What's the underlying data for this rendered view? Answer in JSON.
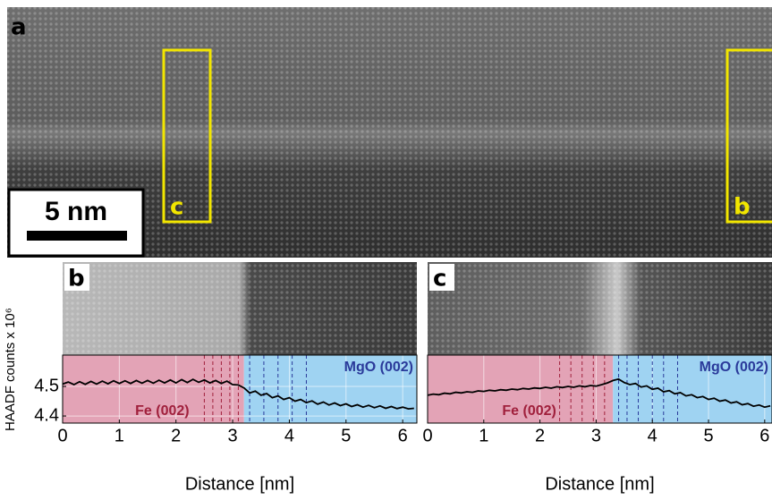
{
  "figure": {
    "panel_labels": [
      "a",
      "b",
      "c"
    ],
    "scale_bar": "5 nm",
    "roi_labels": [
      "c",
      "b"
    ]
  },
  "chart_data": [
    {
      "type": "line",
      "xlabel": "Distance [nm]",
      "ylabel": "HAADF counts x 10⁶",
      "xlim": [
        0,
        6.25
      ],
      "ylim": [
        4.376,
        4.606
      ],
      "xticks": [
        0,
        1,
        2,
        3,
        4,
        5,
        6
      ],
      "yticks": [
        4.4,
        4.5
      ],
      "grid": true,
      "color": "#000000",
      "regions": [
        {
          "label": "Fe (002)",
          "range": [
            0,
            3.2
          ],
          "color": "#e3a3b6",
          "line_color": "#a0203c",
          "lines": [
            2.5,
            2.65,
            2.8,
            2.95,
            3.1
          ]
        },
        {
          "label": "MgO (002)",
          "range": [
            3.2,
            6.25
          ],
          "color": "#9fd3f2",
          "line_color": "#2a3a9a",
          "lines": [
            3.3,
            3.55,
            3.8,
            4.05,
            4.3
          ]
        }
      ],
      "x": [
        0,
        0.1,
        0.2,
        0.3,
        0.4,
        0.5,
        0.6,
        0.7,
        0.8,
        0.9,
        1,
        1.1,
        1.2,
        1.3,
        1.4,
        1.5,
        1.6,
        1.7,
        1.8,
        1.9,
        2,
        2.1,
        2.2,
        2.3,
        2.4,
        2.5,
        2.6,
        2.7,
        2.8,
        2.9,
        3,
        3.1,
        3.2,
        3.3,
        3.4,
        3.5,
        3.6,
        3.7,
        3.8,
        3.9,
        4,
        4.1,
        4.2,
        4.3,
        4.4,
        4.5,
        4.6,
        4.7,
        4.8,
        4.9,
        5,
        5.1,
        5.2,
        5.3,
        5.4,
        5.5,
        5.6,
        5.7,
        5.8,
        5.9,
        6,
        6.1,
        6.2
      ],
      "values": [
        4.508,
        4.515,
        4.506,
        4.516,
        4.507,
        4.517,
        4.508,
        4.518,
        4.509,
        4.519,
        4.51,
        4.519,
        4.51,
        4.52,
        4.511,
        4.52,
        4.511,
        4.521,
        4.512,
        4.522,
        4.512,
        4.523,
        4.513,
        4.524,
        4.514,
        4.522,
        4.512,
        4.52,
        4.51,
        4.518,
        4.506,
        4.505,
        4.495,
        4.478,
        4.484,
        4.47,
        4.476,
        4.462,
        4.468,
        4.456,
        4.462,
        4.45,
        4.456,
        4.445,
        4.451,
        4.44,
        4.447,
        4.437,
        4.444,
        4.435,
        4.441,
        4.432,
        4.438,
        4.43,
        4.436,
        4.428,
        4.434,
        4.426,
        4.432,
        4.425,
        4.43,
        4.424,
        4.426
      ]
    },
    {
      "type": "line",
      "xlabel": "Distance [nm]",
      "xlim": [
        0,
        6.13
      ],
      "ylim": [
        4.376,
        4.606
      ],
      "xticks": [
        0,
        1,
        2,
        3,
        4,
        5,
        6
      ],
      "grid": true,
      "color": "#000000",
      "regions": [
        {
          "label": "Fe (002)",
          "range": [
            0,
            3.3
          ],
          "color": "#e3a3b6",
          "line_color": "#a0203c",
          "lines": [
            2.35,
            2.55,
            2.75,
            2.95,
            3.15
          ]
        },
        {
          "label": "MgO (002)",
          "range": [
            3.3,
            6.13
          ],
          "color": "#9fd3f2",
          "line_color": "#2a3a9a",
          "lines": [
            3.4,
            3.55,
            3.75,
            4.0,
            4.2,
            4.45
          ]
        }
      ],
      "x": [
        0,
        0.1,
        0.2,
        0.3,
        0.4,
        0.5,
        0.6,
        0.7,
        0.8,
        0.9,
        1,
        1.1,
        1.2,
        1.3,
        1.4,
        1.5,
        1.6,
        1.7,
        1.8,
        1.9,
        2,
        2.1,
        2.2,
        2.3,
        2.4,
        2.5,
        2.6,
        2.7,
        2.8,
        2.9,
        3,
        3.1,
        3.2,
        3.3,
        3.4,
        3.5,
        3.6,
        3.7,
        3.8,
        3.9,
        4,
        4.1,
        4.2,
        4.3,
        4.4,
        4.5,
        4.6,
        4.7,
        4.8,
        4.9,
        5,
        5.1,
        5.2,
        5.3,
        5.4,
        5.5,
        5.6,
        5.7,
        5.8,
        5.9,
        6,
        6.1
      ],
      "values": [
        4.47,
        4.474,
        4.472,
        4.477,
        4.475,
        4.48,
        4.478,
        4.482,
        4.48,
        4.485,
        4.483,
        4.487,
        4.485,
        4.489,
        4.487,
        4.491,
        4.489,
        4.493,
        4.491,
        4.495,
        4.493,
        4.497,
        4.494,
        4.499,
        4.496,
        4.5,
        4.497,
        4.502,
        4.499,
        4.503,
        4.501,
        4.506,
        4.512,
        4.52,
        4.525,
        4.513,
        4.506,
        4.51,
        4.498,
        4.502,
        4.49,
        4.494,
        4.482,
        4.486,
        4.475,
        4.479,
        4.468,
        4.472,
        4.462,
        4.466,
        4.456,
        4.46,
        4.45,
        4.454,
        4.444,
        4.448,
        4.438,
        4.442,
        4.433,
        4.437,
        4.43,
        4.434
      ]
    }
  ]
}
